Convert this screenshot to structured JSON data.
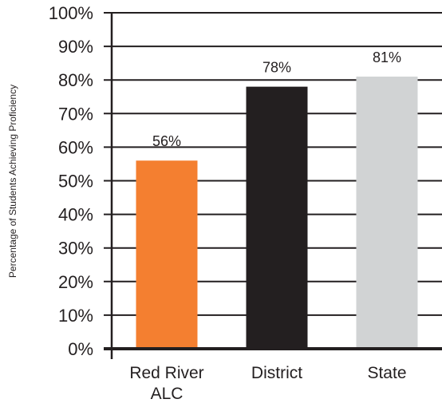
{
  "chart_data": {
    "type": "bar",
    "categories": [
      [
        "Red River",
        "ALC"
      ],
      [
        "District"
      ],
      [
        "State"
      ]
    ],
    "values": [
      56,
      78,
      81
    ],
    "data_labels": [
      "56%",
      "78%",
      "81%"
    ],
    "colors": [
      "#f47f30",
      "#231f20",
      "#d1d3d4"
    ],
    "ylabel": "Percentage of Students Achieving Proficiency",
    "ylim": [
      0,
      100
    ],
    "yticks": [
      0,
      10,
      20,
      30,
      40,
      50,
      60,
      70,
      80,
      90,
      100
    ],
    "ytick_labels": [
      "0%",
      "10%",
      "20%",
      "30%",
      "40%",
      "50%",
      "60%",
      "70%",
      "80%",
      "90%",
      "100%"
    ],
    "grid": true,
    "grid_color": "#231f20"
  }
}
